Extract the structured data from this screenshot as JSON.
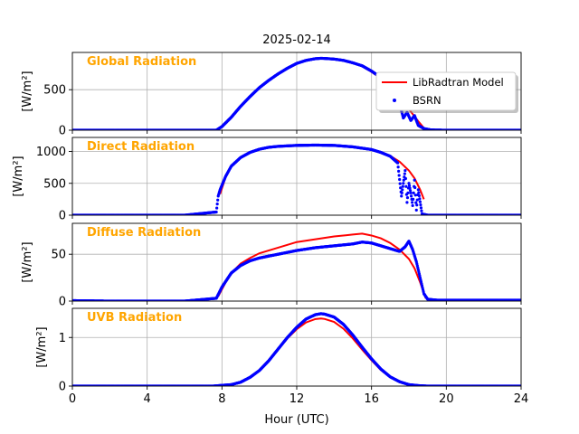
{
  "chart_data": {
    "type": "line",
    "title": "2025-02-14",
    "xlabel": "Hour (UTC)",
    "xlim": [
      0,
      24
    ],
    "xticks": [
      0,
      4,
      8,
      12,
      16,
      20,
      24
    ],
    "grid": true,
    "legend": {
      "placement": "first-panel-right",
      "entries": [
        {
          "name": "LibRadtran Model",
          "marker": "line",
          "color": "#ff0000"
        },
        {
          "name": "BSRN",
          "marker": "dot",
          "color": "#0000ff"
        }
      ]
    },
    "panels": [
      {
        "label": "Global Radiation",
        "ylabel": "[W/m²]",
        "ylim": [
          0,
          960
        ],
        "yticks": [
          0,
          500
        ],
        "series": [
          {
            "name": "LibRadtran Model",
            "x": [
              7.7,
              8,
              8.5,
              9,
              9.5,
              10,
              10.5,
              11,
              11.5,
              12,
              12.5,
              13,
              13.3,
              13.5,
              14,
              14.5,
              15,
              15.5,
              16,
              16.5,
              17,
              17.5,
              18,
              18.5,
              18.9
            ],
            "y": [
              0,
              40,
              150,
              290,
              410,
              520,
              610,
              690,
              760,
              820,
              860,
              880,
              885,
              884,
              875,
              860,
              830,
              790,
              720,
              640,
              540,
              410,
              260,
              110,
              0
            ]
          },
          {
            "name": "BSRN",
            "x": [
              0,
              2,
              4,
              6,
              7.7,
              8,
              8.5,
              9,
              9.5,
              10,
              10.5,
              11,
              11.5,
              12,
              12.5,
              13,
              13.3,
              13.5,
              14,
              14.5,
              15,
              15.5,
              16,
              16.5,
              17,
              17.4,
              17.7,
              17.9,
              18.1,
              18.3,
              18.5,
              18.8,
              19.2,
              20,
              22,
              24
            ],
            "y": [
              0,
              0,
              0,
              0,
              0,
              45,
              160,
              295,
              415,
              525,
              615,
              695,
              765,
              825,
              862,
              883,
              888,
              886,
              878,
              862,
              832,
              795,
              730,
              650,
              540,
              420,
              150,
              220,
              120,
              180,
              60,
              20,
              3,
              0,
              0,
              0
            ]
          }
        ]
      },
      {
        "label": "Direct Radiation",
        "ylabel": "[W/m²]",
        "ylim": [
          0,
          1220
        ],
        "yticks": [
          0,
          500,
          1000
        ],
        "series": [
          {
            "name": "LibRadtran Model",
            "x": [
              7.9,
              8.2,
              8.5,
              9,
              9.5,
              10,
              10.5,
              11,
              12,
              13,
              14,
              15,
              16,
              16.5,
              17,
              17.5,
              18,
              18.3,
              18.6,
              18.8
            ],
            "y": [
              330,
              600,
              760,
              900,
              980,
              1030,
              1060,
              1075,
              1090,
              1095,
              1090,
              1070,
              1030,
              990,
              930,
              840,
              700,
              580,
              400,
              250
            ]
          },
          {
            "name": "BSRN",
            "x": [
              0,
              2,
              4,
              6,
              7.7,
              7.8,
              7.9,
              8.2,
              8.5,
              9,
              9.5,
              10,
              10.5,
              11,
              12,
              13,
              14,
              15,
              16,
              16.5,
              17,
              17.4,
              17.6,
              17.8,
              17.9,
              18,
              18.1,
              18.2,
              18.3,
              18.4,
              18.5,
              18.7,
              19,
              20,
              22,
              24
            ],
            "y": [
              0,
              0,
              0,
              0,
              50,
              300,
              400,
              610,
              770,
              905,
              985,
              1035,
              1065,
              1080,
              1095,
              1100,
              1095,
              1072,
              1030,
              985,
              925,
              820,
              300,
              700,
              200,
              500,
              350,
              150,
              550,
              80,
              400,
              20,
              0,
              0,
              0,
              0
            ]
          }
        ]
      },
      {
        "label": "Diffuse Radiation",
        "ylabel": "[W/m²]",
        "ylim": [
          0,
          83
        ],
        "yticks": [
          0,
          50
        ],
        "series": [
          {
            "name": "LibRadtran Model",
            "x": [
              7.8,
              8.2,
              8.6,
              9,
              9.5,
              10,
              11,
              12,
              13,
              14,
              15,
              15.5,
              16,
              16.5,
              17,
              17.5,
              18,
              18.3,
              18.6,
              18.9
            ],
            "y": [
              5,
              20,
              32,
              40,
              46,
              51,
              57,
              63,
              66,
              69,
              71,
              72,
              70,
              67,
              62,
              55,
              45,
              35,
              20,
              3
            ]
          },
          {
            "name": "BSRN",
            "x": [
              0,
              2,
              4,
              6,
              7.7,
              8,
              8.5,
              9,
              9.5,
              10,
              11,
              12,
              13,
              14,
              15,
              15.5,
              16,
              16.5,
              17,
              17.5,
              17.8,
              18,
              18.2,
              18.4,
              18.6,
              18.8,
              19,
              19.5,
              20,
              22,
              24
            ],
            "y": [
              0.5,
              0,
              0,
              0,
              3,
              15,
              30,
              38,
              43,
              46,
              50,
              54,
              57,
              59,
              61,
              63,
              62,
              59,
              56,
              53,
              58,
              64,
              55,
              42,
              25,
              8,
              2,
              1,
              1,
              1,
              1
            ]
          }
        ]
      },
      {
        "label": "UVB Radiation",
        "ylabel": "[W/m²]",
        "ylim": [
          0,
          1.6
        ],
        "yticks": [
          0,
          1
        ],
        "series": [
          {
            "name": "LibRadtran Model",
            "x": [
              0,
              7.5,
              8.5,
              9,
              9.5,
              10,
              10.5,
              11,
              11.5,
              12,
              12.5,
              13,
              13.3,
              13.5,
              14,
              14.5,
              15,
              15.5,
              16,
              16.5,
              17,
              17.5,
              18,
              18.5,
              19,
              24
            ],
            "y": [
              0,
              0,
              0.03,
              0.08,
              0.18,
              0.32,
              0.52,
              0.75,
              0.98,
              1.17,
              1.31,
              1.38,
              1.39,
              1.38,
              1.32,
              1.18,
              0.98,
              0.75,
              0.53,
              0.33,
              0.18,
              0.08,
              0.03,
              0.01,
              0,
              0
            ]
          },
          {
            "name": "BSRN",
            "x": [
              0,
              7.5,
              8.5,
              9,
              9.5,
              10,
              10.5,
              11,
              11.5,
              12,
              12.5,
              13,
              13.3,
              13.5,
              14,
              14.5,
              15,
              15.5,
              16,
              16.5,
              17,
              17.5,
              18,
              18.5,
              19,
              24
            ],
            "y": [
              0,
              0,
              0.03,
              0.08,
              0.18,
              0.32,
              0.52,
              0.76,
              1.0,
              1.21,
              1.38,
              1.47,
              1.49,
              1.48,
              1.42,
              1.27,
              1.05,
              0.8,
              0.56,
              0.35,
              0.19,
              0.09,
              0.03,
              0.01,
              0,
              0
            ]
          }
        ]
      }
    ]
  }
}
